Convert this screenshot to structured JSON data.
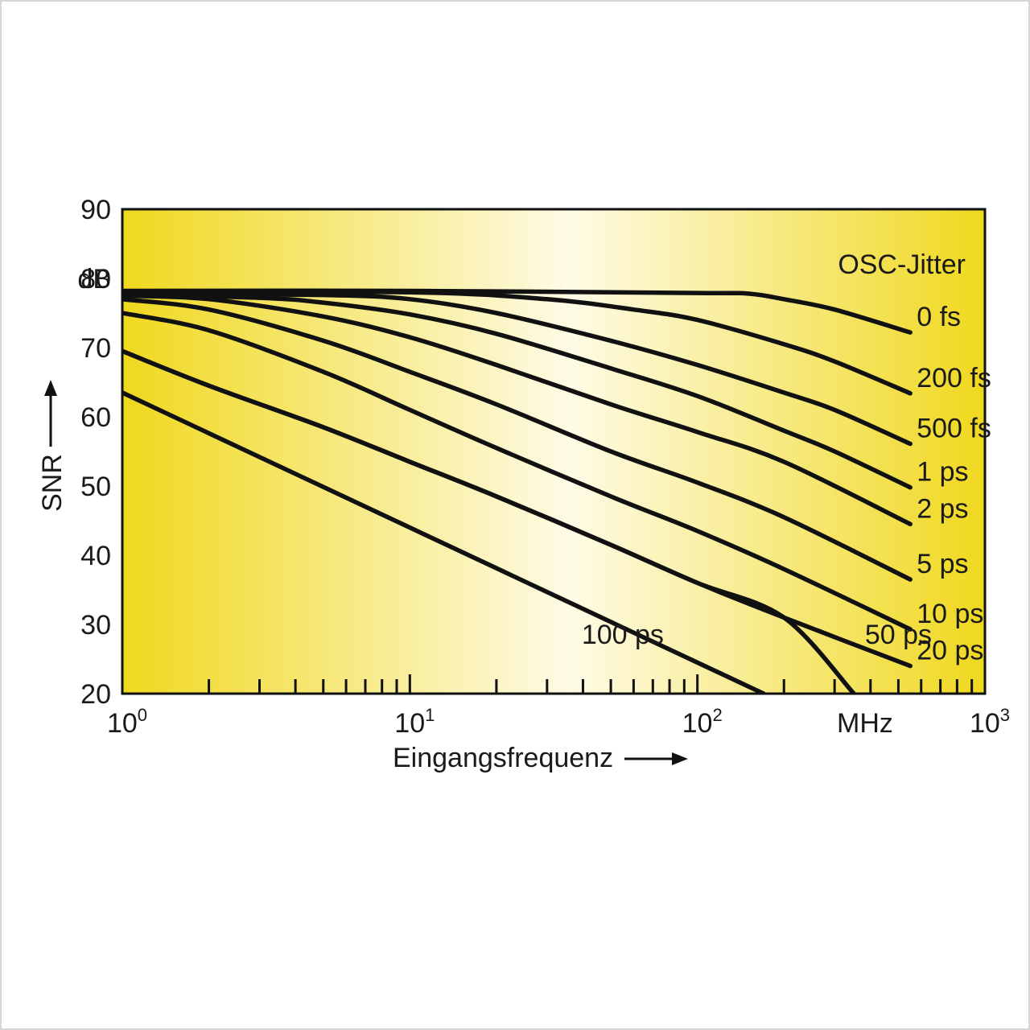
{
  "chart_data": {
    "type": "line",
    "x_scale": "log",
    "xlim": [
      1,
      1000
    ],
    "ylim": [
      20,
      90
    ],
    "x_ticks": [
      {
        "value": 1,
        "base": "10",
        "exp": "0"
      },
      {
        "value": 10,
        "base": "10",
        "exp": "1"
      },
      {
        "value": 100,
        "base": "10",
        "exp": "2"
      },
      {
        "value": 1000,
        "base": "10",
        "exp": "3"
      }
    ],
    "y_ticks": [
      "90",
      "80",
      "70",
      "60",
      "50",
      "40",
      "30",
      "20"
    ],
    "y_unit": "dB",
    "x_unit": "MHz",
    "xlabel": "Eingangsfrequenz",
    "ylabel": "SNR",
    "legend_title": "OSC-Jitter",
    "grid": false,
    "background": {
      "edge_color": "#f0d81e",
      "center_color": "#fefbe6"
    },
    "line_color": "#111111",
    "series": [
      {
        "name": "0 fs",
        "label_pos": "right",
        "x": [
          1,
          10,
          100,
          150,
          200,
          300,
          550
        ],
        "y": [
          78.2,
          78.2,
          77.9,
          77.8,
          77.0,
          75.5,
          72.2
        ]
      },
      {
        "name": "200 fs",
        "label_pos": "right",
        "x": [
          1,
          10,
          30,
          60,
          100,
          200,
          300,
          550
        ],
        "y": [
          78.0,
          78.0,
          77.0,
          75.5,
          74.0,
          70.5,
          68.0,
          63.4
        ]
      },
      {
        "name": "500 fs",
        "label_pos": "right",
        "x": [
          1,
          5,
          10,
          20,
          50,
          100,
          200,
          300,
          550
        ],
        "y": [
          77.8,
          77.6,
          77.0,
          75.0,
          71.0,
          67.5,
          63.5,
          61.0,
          56.1
        ]
      },
      {
        "name": "1 ps",
        "label_pos": "right",
        "x": [
          1,
          3,
          5,
          10,
          20,
          50,
          100,
          200,
          300,
          550
        ],
        "y": [
          77.7,
          77.2,
          76.5,
          74.8,
          72.0,
          67.0,
          63.0,
          58.0,
          55.0,
          49.8
        ]
      },
      {
        "name": "2 ps",
        "label_pos": "right",
        "x": [
          1,
          2,
          5,
          10,
          20,
          50,
          100,
          200,
          550
        ],
        "y": [
          77.5,
          77.0,
          74.5,
          71.5,
          67.5,
          61.8,
          57.8,
          53.5,
          44.5
        ]
      },
      {
        "name": "5 ps",
        "label_pos": "right",
        "x": [
          1,
          2,
          5,
          10,
          20,
          50,
          100,
          200,
          550
        ],
        "y": [
          77.0,
          75.5,
          71.0,
          66.5,
          61.8,
          55.0,
          50.5,
          45.5,
          36.5
        ]
      },
      {
        "name": "10 ps",
        "label_pos": "right",
        "x": [
          1,
          2,
          5,
          10,
          20,
          50,
          100,
          200,
          550
        ],
        "y": [
          75.0,
          72.5,
          66.5,
          61.0,
          55.5,
          48.5,
          43.5,
          38.0,
          29.3
        ]
      },
      {
        "name": "20 ps",
        "label_pos": "right",
        "x": [
          1,
          2,
          5,
          10,
          20,
          50,
          100,
          200,
          550
        ],
        "y": [
          69.5,
          64.5,
          58.5,
          53.5,
          48.5,
          41.5,
          36.0,
          31.0,
          24.0
        ]
      },
      {
        "name": "50 ps",
        "label_pos": "inline",
        "label_x": 500,
        "label_y": 27.2,
        "x": [
          1,
          2,
          5,
          10,
          20,
          50,
          100,
          200,
          350
        ],
        "y": [
          69.5,
          64.5,
          58.5,
          53.5,
          48.5,
          41.5,
          36.0,
          31.0,
          20.0
        ]
      },
      {
        "name": "100 ps",
        "label_pos": "inline",
        "label_x": 55,
        "label_y": 27.2,
        "x": [
          1,
          10,
          170
        ],
        "y": [
          63.5,
          44.0,
          20.0
        ]
      }
    ]
  }
}
